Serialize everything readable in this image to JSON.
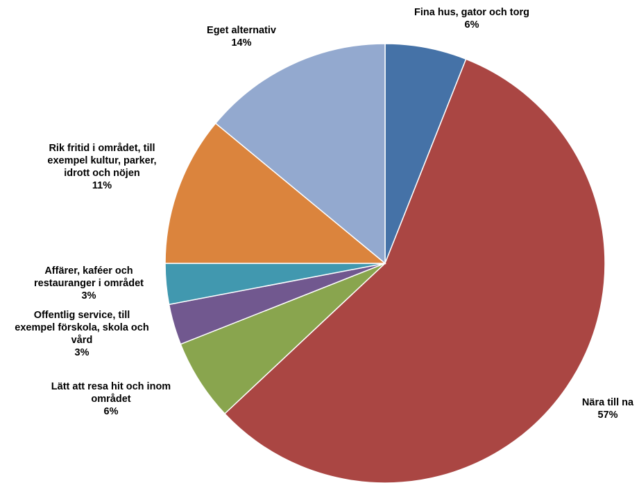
{
  "chart_data": {
    "type": "pie",
    "slices": [
      {
        "label": "Fina hus, gator och torg",
        "label_lines": [
          "Fina hus, gator och torg"
        ],
        "value": 6,
        "value_label": "6%",
        "color": "#4572A7"
      },
      {
        "label": "Nära till na",
        "label_lines": [
          "Nära till na"
        ],
        "value": 57,
        "value_label": "57%",
        "color": "#AA4643"
      },
      {
        "label": "Lätt att resa hit och inom området",
        "label_lines": [
          "Lätt att resa hit och inom",
          "området"
        ],
        "value": 6,
        "value_label": "6%",
        "color": "#89A54E"
      },
      {
        "label": "Offentlig service, till exempel förskola, skola och vård",
        "label_lines": [
          "Offentlig service, till",
          "exempel förskola, skola och",
          "vård"
        ],
        "value": 3,
        "value_label": "3%",
        "color": "#71588F"
      },
      {
        "label": "Affärer, kaféer och restauranger i området",
        "label_lines": [
          "Affärer, kaféer och",
          "restauranger i området"
        ],
        "value": 3,
        "value_label": "3%",
        "color": "#4198AF"
      },
      {
        "label": "Rik fritid i området, till exempel kultur, parker, idrott och nöjen",
        "label_lines": [
          "Rik fritid i området, till",
          "exempel kultur, parker,",
          "idrott och nöjen"
        ],
        "value": 11,
        "value_label": "11%",
        "color": "#DB843D"
      },
      {
        "label": "Eget alternativ",
        "label_lines": [
          "Eget alternativ"
        ],
        "value": 14,
        "value_label": "14%",
        "color": "#93A9CF"
      }
    ]
  }
}
